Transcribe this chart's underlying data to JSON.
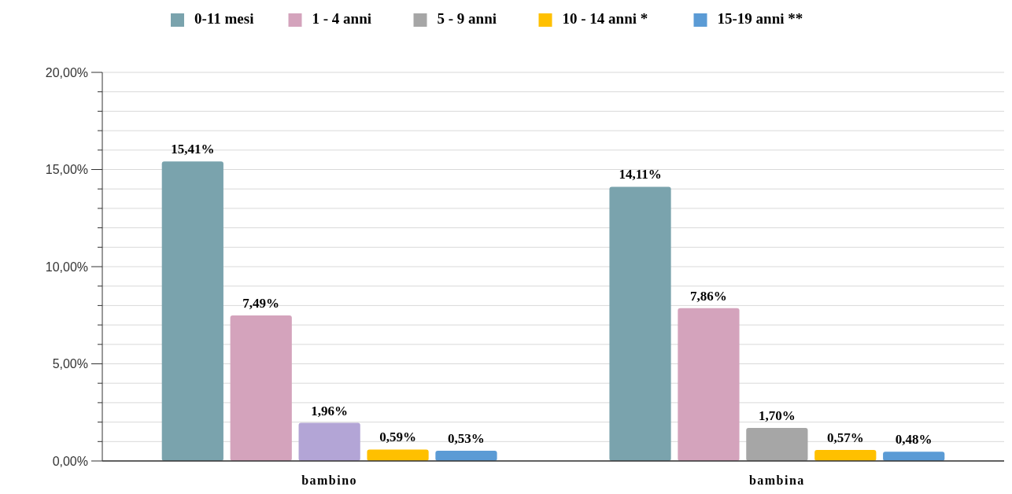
{
  "chart_data": {
    "type": "bar",
    "categories": [
      "bambino",
      "bambina"
    ],
    "series": [
      {
        "name": "0-11 mesi",
        "color": "#7aa3ad",
        "values": [
          15.41,
          14.11
        ],
        "value_labels": [
          "15,41%",
          "14,11%"
        ]
      },
      {
        "name": "1 - 4 anni",
        "color": "#d4a3bc",
        "values": [
          7.49,
          7.86
        ],
        "value_labels": [
          "7,49%",
          "7,86%"
        ]
      },
      {
        "name": "5 - 9 anni",
        "color": "#a6a6a6",
        "colors": [
          "#b3a5d6",
          "#a6a6a6"
        ],
        "values": [
          1.96,
          1.7
        ],
        "value_labels": [
          "1,96%",
          "1,70%"
        ]
      },
      {
        "name": "10 - 14 anni *",
        "color": "#ffc000",
        "values": [
          0.59,
          0.57
        ],
        "value_labels": [
          "0,59%",
          "0,57%"
        ]
      },
      {
        "name": "15-19 anni **",
        "color": "#5b9bd5",
        "values": [
          0.53,
          0.48
        ],
        "value_labels": [
          "0,53%",
          "0,48%"
        ]
      }
    ],
    "ylim": [
      0,
      20
    ],
    "yticks": [
      {
        "value": 0,
        "label": "0,00%"
      },
      {
        "value": 1,
        "label": null
      },
      {
        "value": 2,
        "label": null
      },
      {
        "value": 3,
        "label": null
      },
      {
        "value": 4,
        "label": null
      },
      {
        "value": 5,
        "label": "5,00%"
      },
      {
        "value": 6,
        "label": null
      },
      {
        "value": 7,
        "label": null
      },
      {
        "value": 8,
        "label": null
      },
      {
        "value": 9,
        "label": null
      },
      {
        "value": 10,
        "label": "10,00%"
      },
      {
        "value": 11,
        "label": null
      },
      {
        "value": 12,
        "label": null
      },
      {
        "value": 13,
        "label": null
      },
      {
        "value": 14,
        "label": null
      },
      {
        "value": 15,
        "label": "15,00%"
      },
      {
        "value": 16,
        "label": null
      },
      {
        "value": 17,
        "label": null
      },
      {
        "value": 18,
        "label": null
      },
      {
        "value": 19,
        "label": null
      },
      {
        "value": 20,
        "label": "20,00%"
      }
    ],
    "grid": "y",
    "legend": "top"
  }
}
